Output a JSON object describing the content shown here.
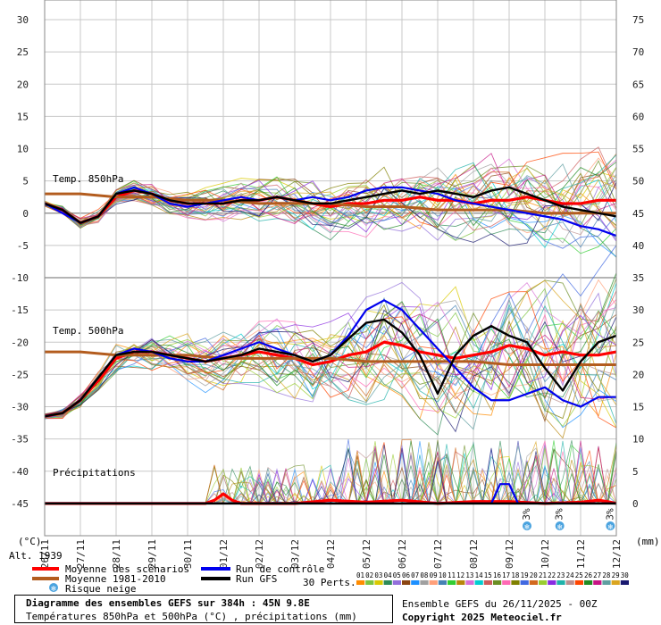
{
  "chart_data": {
    "type": "line",
    "title": "Diagramme des ensembles GEFS sur 384h : 45N 9.8E",
    "subtitle": "Températures 850hPa et 500hPa (°C) , précipitations (mm)",
    "left_axis_unit": "(°C)",
    "right_axis_unit": "(mm)",
    "left_axis": {
      "range": [
        -50,
        30
      ],
      "ticks": [
        30,
        25,
        20,
        15,
        10,
        5,
        0,
        -5,
        -10,
        -15,
        -20,
        -25,
        -30,
        -35,
        -40,
        -45
      ]
    },
    "right_axis": {
      "ticks": [
        75,
        70,
        65,
        60,
        55,
        50,
        45,
        40,
        35,
        30,
        25,
        20,
        15,
        10,
        5,
        0
      ]
    },
    "x_labels": [
      "26/11",
      "27/11",
      "28/11",
      "29/11",
      "30/11",
      "01/12",
      "02/12",
      "03/12",
      "04/12",
      "05/12",
      "06/12",
      "07/12",
      "08/12",
      "09/12",
      "10/12",
      "11/12",
      "12/12"
    ],
    "x_range_hours": [
      0,
      384
    ],
    "alt_label": "Alt. 1939",
    "section_labels": {
      "t850": "Temp. 850hPa",
      "t500": "Temp. 500hPa",
      "precip": "Précipitations"
    },
    "snow_risk": [
      {
        "hour": 324,
        "label": "3%"
      },
      {
        "hour": 346,
        "label": "3%"
      },
      {
        "hour": 380,
        "label": "3%"
      }
    ],
    "series": [
      {
        "name": "Moyenne des scénarios",
        "color": "#ff0000",
        "group": "t850",
        "x": [
          0,
          12,
          24,
          36,
          48,
          60,
          72,
          84,
          96,
          108,
          120,
          132,
          144,
          156,
          168,
          180,
          192,
          204,
          216,
          228,
          240,
          252,
          264,
          276,
          288,
          300,
          312,
          324,
          336,
          348,
          360,
          372,
          384
        ],
        "values": [
          1.5,
          0.5,
          -1.5,
          -0.5,
          2.5,
          3.5,
          3.0,
          2.0,
          1.5,
          1.5,
          1.5,
          2.0,
          2.0,
          2.5,
          2.0,
          1.5,
          1.0,
          1.5,
          1.5,
          2.0,
          2.0,
          2.5,
          2.0,
          2.0,
          1.5,
          2.0,
          2.0,
          2.5,
          2.0,
          1.5,
          1.5,
          2.0,
          2.0
        ]
      },
      {
        "name": "Moyenne 1981-2010",
        "color": "#b35c1e",
        "group": "t850",
        "x": [
          0,
          24,
          48,
          72,
          96,
          120,
          144,
          168,
          192,
          216,
          240,
          264,
          288,
          312,
          336,
          360,
          384
        ],
        "values": [
          3.0,
          3.0,
          2.5,
          2.5,
          2.0,
          2.0,
          1.5,
          1.5,
          1.5,
          1.0,
          1.0,
          0.5,
          0.5,
          0.5,
          0.0,
          0.0,
          0.0
        ]
      },
      {
        "name": "Run de contrôle",
        "color": "#0000ee",
        "group": "t850",
        "x": [
          0,
          12,
          24,
          36,
          48,
          60,
          72,
          84,
          96,
          108,
          120,
          132,
          144,
          156,
          168,
          180,
          192,
          204,
          216,
          228,
          240,
          252,
          264,
          276,
          288,
          300,
          312,
          324,
          336,
          348,
          360,
          372,
          384
        ],
        "values": [
          1.5,
          0.0,
          -1.5,
          -0.5,
          3.0,
          4.0,
          3.0,
          1.5,
          1.0,
          1.5,
          2.0,
          2.5,
          2.0,
          2.5,
          2.0,
          2.5,
          2.0,
          2.5,
          3.5,
          4.0,
          4.0,
          3.5,
          3.0,
          2.0,
          1.5,
          1.0,
          0.5,
          0.0,
          -0.5,
          -1.0,
          -2.0,
          -2.5,
          -3.5
        ]
      },
      {
        "name": "Run GFS",
        "color": "#000000",
        "group": "t850",
        "x": [
          0,
          12,
          24,
          36,
          48,
          60,
          72,
          84,
          96,
          108,
          120,
          132,
          144,
          156,
          168,
          180,
          192,
          204,
          216,
          228,
          240,
          252,
          264,
          276,
          288,
          300,
          312,
          324,
          336,
          348,
          360,
          372,
          384
        ],
        "values": [
          1.5,
          0.5,
          -1.5,
          -0.5,
          3.0,
          3.5,
          3.0,
          2.0,
          1.5,
          1.5,
          1.5,
          2.0,
          2.0,
          2.5,
          2.0,
          1.5,
          1.5,
          2.0,
          2.5,
          3.0,
          3.5,
          3.0,
          3.5,
          3.0,
          2.5,
          3.5,
          4.0,
          3.0,
          2.0,
          1.0,
          0.5,
          0.0,
          -0.5
        ]
      },
      {
        "name": "Moyenne des scénarios",
        "color": "#ff0000",
        "group": "t500",
        "x": [
          0,
          12,
          24,
          36,
          48,
          60,
          72,
          84,
          96,
          108,
          120,
          132,
          144,
          156,
          168,
          180,
          192,
          204,
          216,
          228,
          240,
          252,
          264,
          276,
          288,
          300,
          312,
          324,
          336,
          348,
          360,
          372,
          384
        ],
        "values": [
          -31.5,
          -31.0,
          -29.0,
          -26.0,
          -22.5,
          -21.5,
          -21.5,
          -22.0,
          -22.5,
          -23.0,
          -22.5,
          -22.0,
          -21.5,
          -22.0,
          -22.5,
          -23.5,
          -23.0,
          -22.0,
          -21.5,
          -20.0,
          -20.5,
          -21.5,
          -22.0,
          -22.5,
          -22.0,
          -21.5,
          -20.5,
          -21.0,
          -22.0,
          -21.5,
          -22.0,
          -22.0,
          -21.5
        ]
      },
      {
        "name": "Moyenne 1981-2010",
        "color": "#b35c1e",
        "group": "t500",
        "x": [
          0,
          24,
          48,
          72,
          96,
          120,
          144,
          168,
          192,
          216,
          240,
          264,
          288,
          312,
          336,
          360,
          384
        ],
        "values": [
          -21.5,
          -21.5,
          -22.0,
          -22.0,
          -22.0,
          -22.5,
          -22.5,
          -22.5,
          -22.5,
          -23.0,
          -23.0,
          -23.0,
          -23.0,
          -23.5,
          -23.5,
          -23.5,
          -23.5
        ]
      },
      {
        "name": "Run de contrôle",
        "color": "#0000ee",
        "group": "t500",
        "x": [
          0,
          12,
          24,
          36,
          48,
          60,
          72,
          84,
          96,
          108,
          120,
          132,
          144,
          156,
          168,
          180,
          192,
          204,
          216,
          228,
          240,
          252,
          264,
          276,
          288,
          300,
          312,
          324,
          336,
          348,
          360,
          372,
          384
        ],
        "values": [
          -31.5,
          -31.0,
          -29.0,
          -25.5,
          -22.0,
          -21.0,
          -21.5,
          -22.5,
          -23.0,
          -23.0,
          -22.0,
          -21.0,
          -20.0,
          -21.0,
          -22.0,
          -23.0,
          -22.0,
          -19.0,
          -15.0,
          -13.5,
          -15.0,
          -18.0,
          -21.0,
          -24.0,
          -27.0,
          -29.0,
          -29.0,
          -28.0,
          -27.0,
          -29.0,
          -30.0,
          -28.5,
          -28.5
        ]
      },
      {
        "name": "Run GFS",
        "color": "#000000",
        "group": "t500",
        "x": [
          0,
          12,
          24,
          36,
          48,
          60,
          72,
          84,
          96,
          108,
          120,
          132,
          144,
          156,
          168,
          180,
          192,
          204,
          216,
          228,
          240,
          252,
          264,
          276,
          288,
          300,
          312,
          324,
          336,
          348,
          360,
          372,
          384
        ],
        "values": [
          -31.5,
          -31.0,
          -29.0,
          -25.5,
          -22.0,
          -21.5,
          -21.5,
          -22.0,
          -22.5,
          -23.0,
          -22.5,
          -22.0,
          -21.0,
          -21.5,
          -22.0,
          -23.0,
          -22.0,
          -19.5,
          -17.0,
          -16.5,
          -18.5,
          -22.0,
          -28.0,
          -22.0,
          -19.0,
          -17.5,
          -19.0,
          -20.0,
          -24.0,
          -27.5,
          -23.0,
          -20.0,
          -19.0
        ]
      },
      {
        "name": "Moyenne des scénarios",
        "color": "#ff0000",
        "group": "precip",
        "unit": "mm",
        "x": [
          0,
          24,
          48,
          72,
          96,
          108,
          114,
          120,
          126,
          132,
          144,
          168,
          192,
          216,
          240,
          264,
          288,
          312,
          336,
          360,
          372,
          378,
          384
        ],
        "values": [
          0,
          0,
          0,
          0,
          0,
          0,
          0.5,
          1.5,
          0.5,
          0,
          0,
          0,
          0.5,
          0.2,
          0.5,
          0,
          0.3,
          0.3,
          0,
          0.2,
          0.5,
          0.3,
          0
        ]
      },
      {
        "name": "Run de contrôle",
        "color": "#0000ee",
        "group": "precip",
        "unit": "mm",
        "x": [
          0,
          24,
          48,
          72,
          96,
          108,
          114,
          120,
          126,
          132,
          144,
          168,
          192,
          216,
          240,
          264,
          288,
          300,
          306,
          312,
          318,
          324,
          330,
          336,
          342,
          348,
          360,
          384
        ],
        "values": [
          0,
          0,
          0,
          0,
          0,
          0,
          0,
          0,
          0,
          0,
          0,
          0,
          0,
          0,
          0,
          0,
          0,
          0,
          3,
          3,
          0,
          0,
          0,
          0,
          0,
          0,
          0,
          0
        ]
      },
      {
        "name": "Run GFS",
        "color": "#000000",
        "group": "precip",
        "unit": "mm",
        "x": [
          0,
          24,
          48,
          72,
          96,
          120,
          144,
          168,
          192,
          216,
          240,
          264,
          288,
          312,
          336,
          360,
          384
        ],
        "values": [
          0,
          0,
          0,
          0,
          0,
          0,
          0,
          0,
          0,
          0,
          0,
          0,
          0,
          0,
          0,
          0,
          0
        ]
      }
    ],
    "perturbations": {
      "label": "30 Perts.",
      "names": [
        "01",
        "02",
        "03",
        "04",
        "05",
        "06",
        "07",
        "08",
        "09",
        "10",
        "11",
        "12",
        "13",
        "14",
        "15",
        "16",
        "17",
        "18",
        "19",
        "20",
        "21",
        "22",
        "23",
        "24",
        "25",
        "26",
        "27",
        "28",
        "29",
        "30"
      ],
      "colors": [
        "#ff8c00",
        "#7cc440",
        "#d9c900",
        "#2e8b57",
        "#9370db",
        "#8b4513",
        "#1e90ff",
        "#a0a0a0",
        "#ffa07a",
        "#4682b4",
        "#32cd32",
        "#b8860b",
        "#da70d6",
        "#00ced1",
        "#cd5c5c",
        "#6b8e23",
        "#ff69b4",
        "#808000",
        "#4169e1",
        "#d2691e",
        "#9acd32",
        "#8a2be2",
        "#20b2aa",
        "#bc8f8f",
        "#ff4500",
        "#228b22",
        "#c71585",
        "#5f9ea0",
        "#daa520",
        "#191970"
      ]
    },
    "legend": {
      "mean": "Moyenne des scénarios",
      "clim": "Moyenne 1981-2010",
      "snow": "Risque neige",
      "control": "Run de contrôle",
      "gfs": "Run GFS"
    },
    "colors": {
      "mean": "#ff0000",
      "clim": "#b35c1e",
      "control": "#0000ee",
      "gfs": "#000000",
      "snow": "#4aa3df"
    }
  },
  "footer": {
    "title": "Diagramme des ensembles GEFS sur 384h : 45N 9.8E",
    "subtitle": "Températures 850hPa et 500hPa (°C) , précipitations (mm)",
    "ensemble_info": "Ensemble GEFS du 26/11/2025 - 00Z",
    "copyright": "Copyright 2025 Meteociel.fr"
  }
}
